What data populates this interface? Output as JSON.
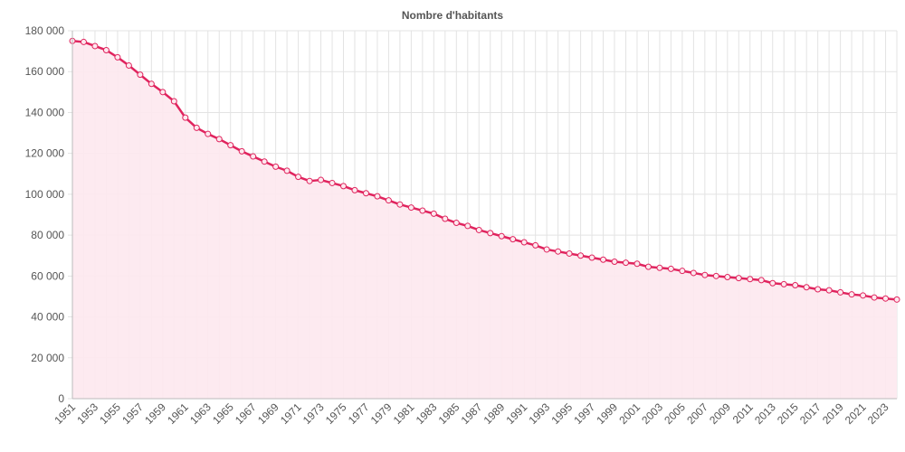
{
  "chart_data": {
    "type": "line",
    "title": "Nombre d'habitants",
    "xlabel": "",
    "ylabel": "",
    "ylim": [
      0,
      180000
    ],
    "yticks": [
      "0",
      "20 000",
      "40 000",
      "60 000",
      "80 000",
      "100 000",
      "120 000",
      "140 000",
      "160 000",
      "180 000"
    ],
    "grid": true,
    "legend": "none",
    "colors": {
      "line": "#e0245e",
      "fill": "#fde8ee",
      "grid": "#e3e3e3"
    },
    "x": [
      1951,
      1952,
      1953,
      1954,
      1955,
      1956,
      1957,
      1958,
      1959,
      1960,
      1961,
      1962,
      1963,
      1964,
      1965,
      1966,
      1967,
      1968,
      1969,
      1970,
      1971,
      1972,
      1973,
      1974,
      1975,
      1976,
      1977,
      1978,
      1979,
      1980,
      1981,
      1982,
      1983,
      1984,
      1985,
      1986,
      1987,
      1988,
      1989,
      1990,
      1991,
      1992,
      1993,
      1994,
      1995,
      1996,
      1997,
      1998,
      1999,
      2000,
      2001,
      2002,
      2003,
      2004,
      2005,
      2006,
      2007,
      2008,
      2009,
      2010,
      2011,
      2012,
      2013,
      2014,
      2015,
      2016,
      2017,
      2018,
      2019,
      2020,
      2021,
      2022,
      2023,
      2024
    ],
    "xtick_labels": [
      "1951",
      "1953",
      "1955",
      "1957",
      "1959",
      "1961",
      "1963",
      "1965",
      "1967",
      "1969",
      "1971",
      "1973",
      "1975",
      "1977",
      "1979",
      "1981",
      "1983",
      "1985",
      "1987",
      "1989",
      "1991",
      "1993",
      "1995",
      "1997",
      "1999",
      "2001",
      "2003",
      "2005",
      "2007",
      "2009",
      "2011",
      "2013",
      "2015",
      "2017",
      "2019",
      "2021",
      "2023"
    ],
    "series": [
      {
        "values": [
          175000,
          174500,
          172500,
          170500,
          167000,
          163000,
          158500,
          154000,
          150000,
          145500,
          137500,
          132500,
          129500,
          127000,
          124000,
          121000,
          118500,
          116000,
          113500,
          111500,
          108500,
          106500,
          107000,
          105500,
          104000,
          102000,
          100500,
          99000,
          97000,
          95000,
          93500,
          92000,
          90500,
          88000,
          86000,
          84500,
          82500,
          81000,
          79500,
          78000,
          76500,
          75000,
          73000,
          72000,
          71000,
          70000,
          69000,
          68000,
          67000,
          66500,
          66000,
          64500,
          64000,
          63500,
          62500,
          61500,
          60500,
          60000,
          59500,
          59000,
          58500,
          58000,
          56500,
          56000,
          55500,
          54500,
          53500,
          53000,
          52000,
          51000,
          50500,
          49500,
          49000,
          48500
        ]
      }
    ]
  }
}
